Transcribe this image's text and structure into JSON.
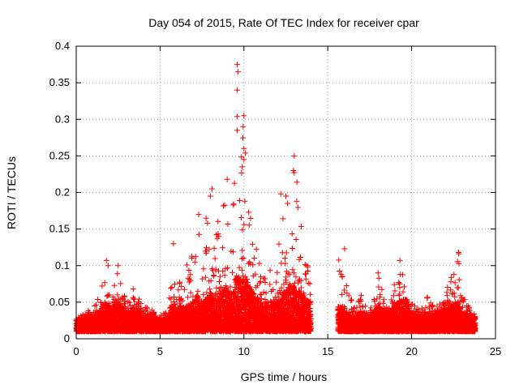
{
  "chart_data": {
    "type": "scatter",
    "title": "Day 054 of 2015, Rate Of TEC Index for receiver cpar",
    "xlabel": "GPS time / hours",
    "ylabel": "ROTI / TECUs",
    "xlim": [
      0,
      25
    ],
    "ylim": [
      0,
      0.4
    ],
    "xticks": [
      0,
      5,
      10,
      15,
      20,
      25
    ],
    "yticks": [
      0,
      0.05,
      0.1,
      0.15,
      0.2,
      0.25,
      0.3,
      0.35,
      0.4
    ],
    "xtick_labels": [
      "0",
      "5",
      "10",
      "15",
      "20",
      "25"
    ],
    "ytick_labels": [
      "0",
      "0.05",
      "0.1",
      "0.15",
      "0.2",
      "0.25",
      "0.3",
      "0.35",
      "0.4"
    ],
    "grid": true,
    "marker": "+",
    "color": "#ff0000",
    "data_gap_hours": [
      14.0,
      15.6
    ],
    "series": [
      {
        "name": "ROTI",
        "envelope": {
          "x": [
            0,
            0.5,
            1,
            1.5,
            1.8,
            2,
            2.4,
            3,
            3.4,
            4,
            4.5,
            5,
            5.5,
            5.8,
            6,
            6.5,
            7,
            7.2,
            7.5,
            8,
            8.2,
            8.5,
            9,
            9.3,
            9.6,
            9.8,
            10,
            10.3,
            10.6,
            11,
            11.5,
            12,
            12.5,
            12.8,
            13,
            13.5,
            13.9,
            15.7,
            16,
            16.5,
            17,
            17.5,
            18,
            18.5,
            19,
            19.3,
            19.6,
            20,
            20.5,
            21,
            21.5,
            22,
            22.5,
            22.8,
            23,
            23.5,
            23.8
          ],
          "max": [
            0.03,
            0.035,
            0.045,
            0.068,
            0.105,
            0.06,
            0.095,
            0.05,
            0.068,
            0.045,
            0.04,
            0.03,
            0.05,
            0.13,
            0.08,
            0.1,
            0.12,
            0.17,
            0.13,
            0.21,
            0.14,
            0.17,
            0.24,
            0.14,
            0.37,
            0.28,
            0.3,
            0.2,
            0.15,
            0.1,
            0.09,
            0.12,
            0.195,
            0.16,
            0.25,
            0.14,
            0.11,
            0.12,
            0.08,
            0.05,
            0.06,
            0.035,
            0.09,
            0.05,
            0.085,
            0.1,
            0.105,
            0.05,
            0.04,
            0.06,
            0.045,
            0.07,
            0.09,
            0.118,
            0.06,
            0.04,
            0.04
          ],
          "typical": [
            0.025,
            0.027,
            0.03,
            0.04,
            0.05,
            0.04,
            0.05,
            0.035,
            0.04,
            0.032,
            0.03,
            0.025,
            0.03,
            0.05,
            0.04,
            0.045,
            0.05,
            0.06,
            0.05,
            0.06,
            0.055,
            0.06,
            0.07,
            0.06,
            0.09,
            0.08,
            0.08,
            0.07,
            0.06,
            0.05,
            0.045,
            0.05,
            0.07,
            0.065,
            0.075,
            0.06,
            0.05,
            0.045,
            0.035,
            0.03,
            0.035,
            0.03,
            0.045,
            0.035,
            0.045,
            0.05,
            0.055,
            0.035,
            0.03,
            0.035,
            0.035,
            0.04,
            0.045,
            0.05,
            0.035,
            0.03,
            0.03
          ]
        },
        "points": [
          {
            "x": 9.6,
            "y": 0.375
          },
          {
            "x": 9.65,
            "y": 0.365
          },
          {
            "x": 9.6,
            "y": 0.34
          },
          {
            "x": 10.0,
            "y": 0.305
          },
          {
            "x": 9.95,
            "y": 0.29
          },
          {
            "x": 9.6,
            "y": 0.285
          },
          {
            "x": 10.0,
            "y": 0.26
          },
          {
            "x": 13.0,
            "y": 0.25
          },
          {
            "x": 12.95,
            "y": 0.23
          },
          {
            "x": 13.0,
            "y": 0.227
          },
          {
            "x": 10.0,
            "y": 0.245
          },
          {
            "x": 9.9,
            "y": 0.235
          },
          {
            "x": 8.1,
            "y": 0.205
          },
          {
            "x": 8.0,
            "y": 0.195
          },
          {
            "x": 12.2,
            "y": 0.198
          },
          {
            "x": 12.5,
            "y": 0.195
          },
          {
            "x": 12.6,
            "y": 0.185
          },
          {
            "x": 7.3,
            "y": 0.17
          },
          {
            "x": 1.8,
            "y": 0.107
          },
          {
            "x": 1.9,
            "y": 0.1
          },
          {
            "x": 2.5,
            "y": 0.1
          },
          {
            "x": 3.4,
            "y": 0.068
          },
          {
            "x": 16.0,
            "y": 0.123
          },
          {
            "x": 22.8,
            "y": 0.118
          },
          {
            "x": 19.3,
            "y": 0.107
          },
          {
            "x": 18.0,
            "y": 0.09
          },
          {
            "x": 5.8,
            "y": 0.13
          }
        ]
      }
    ]
  }
}
